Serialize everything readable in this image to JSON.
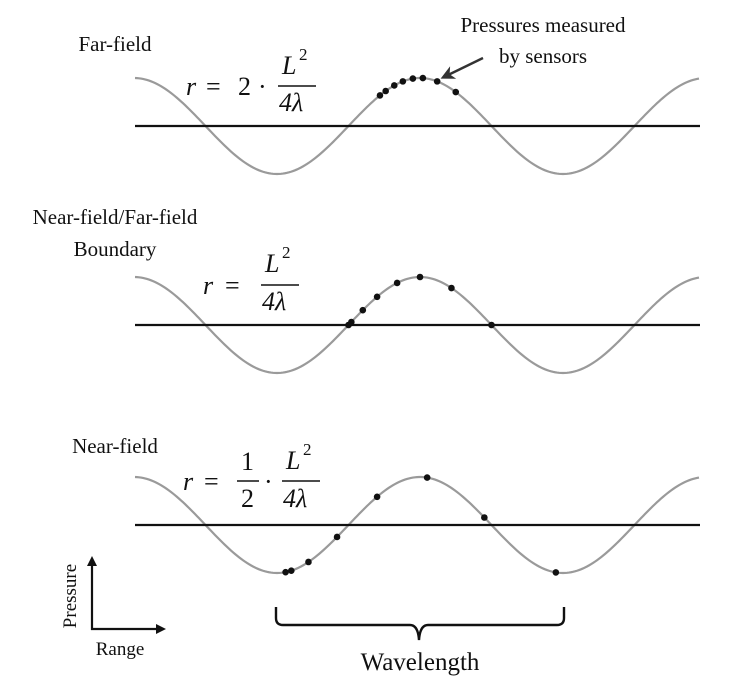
{
  "annotation": {
    "line1": "Pressures measured",
    "line2": "by sensors"
  },
  "panels": [
    {
      "label_lines": [
        "Far-field"
      ],
      "formula": {
        "r": "r",
        "eq": "=",
        "coef_whole": "2",
        "dot": "·",
        "coef_num": "",
        "coef_den": "",
        "num_base": "L",
        "num_exp": "2",
        "den": "4λ"
      },
      "sensor_phases": [
        0.72,
        0.76,
        0.82,
        0.88,
        0.95,
        1.02,
        1.12,
        1.25
      ]
    },
    {
      "label_lines": [
        "Near-field/Far-field",
        "Boundary"
      ],
      "formula": {
        "r": "r",
        "eq": "=",
        "coef_whole": "",
        "dot": "",
        "coef_num": "",
        "coef_den": "",
        "num_base": "L",
        "num_exp": "2",
        "den": "4λ"
      },
      "sensor_phases": [
        0.5,
        0.52,
        0.6,
        0.7,
        0.84,
        1.0,
        1.22,
        1.5
      ]
    },
    {
      "label_lines": [
        "Near-field"
      ],
      "formula": {
        "r": "r",
        "eq": "=",
        "coef_whole": "",
        "dot": "·",
        "coef_num": "1",
        "coef_den": "2",
        "num_base": "L",
        "num_exp": "2",
        "den": "4λ"
      },
      "sensor_phases": [
        0.06,
        0.1,
        0.22,
        0.42,
        0.7,
        1.05,
        1.45,
        1.95
      ]
    }
  ],
  "axes_legend": {
    "y_label": "Pressure",
    "x_label": "Range"
  },
  "wavelength_label": "Wavelength"
}
